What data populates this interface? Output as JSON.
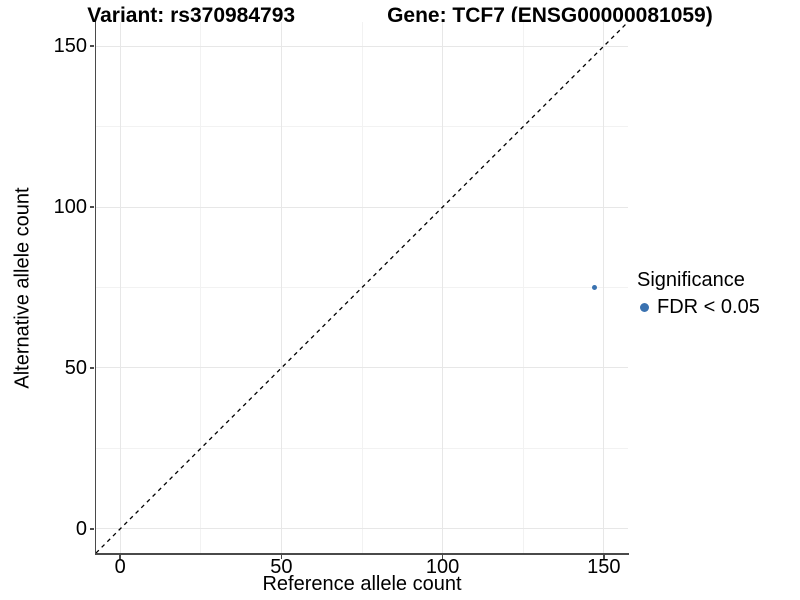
{
  "title": {
    "variant": "Variant: rs370984793",
    "gene": "Gene: TCF7 (ENSG00000081059)"
  },
  "axes": {
    "x_label": "Reference allele count",
    "y_label": "Alternative allele count"
  },
  "legend": {
    "title": "Significance",
    "items": [
      {
        "label": "FDR < 0.05",
        "color": "#3a72b0"
      }
    ]
  },
  "colors": {
    "point": "#3a72b0",
    "identity_line": "#000000",
    "axis_line": "#4a4a4a",
    "grid_major": "#e7e7e7",
    "grid_minor": "#f2f2f2",
    "text": "#000000",
    "background": "#ffffff"
  },
  "chart_data": {
    "type": "scatter",
    "title": "Variant: rs370984793    Gene: TCF7 (ENSG00000081059)",
    "xlabel": "Reference allele count",
    "ylabel": "Alternative allele count",
    "xlim": [
      -7.5,
      157.5
    ],
    "ylim": [
      -7.5,
      157.5
    ],
    "x_ticks": [
      0,
      50,
      100,
      150
    ],
    "y_ticks": [
      0,
      50,
      100,
      150
    ],
    "x_minor_ticks": [
      25,
      75,
      125
    ],
    "y_minor_ticks": [
      25,
      75,
      125
    ],
    "grid": "on",
    "legend_position": "right",
    "identity_line": {
      "style": "dashed",
      "from": [
        -7.5,
        -7.5
      ],
      "to": [
        157.5,
        157.5
      ],
      "color": "#000000"
    },
    "series": [
      {
        "name": "FDR < 0.05",
        "color": "#3a72b0",
        "point_radius": 2.5,
        "points": [
          {
            "x": 147,
            "y": 75
          }
        ]
      }
    ]
  }
}
